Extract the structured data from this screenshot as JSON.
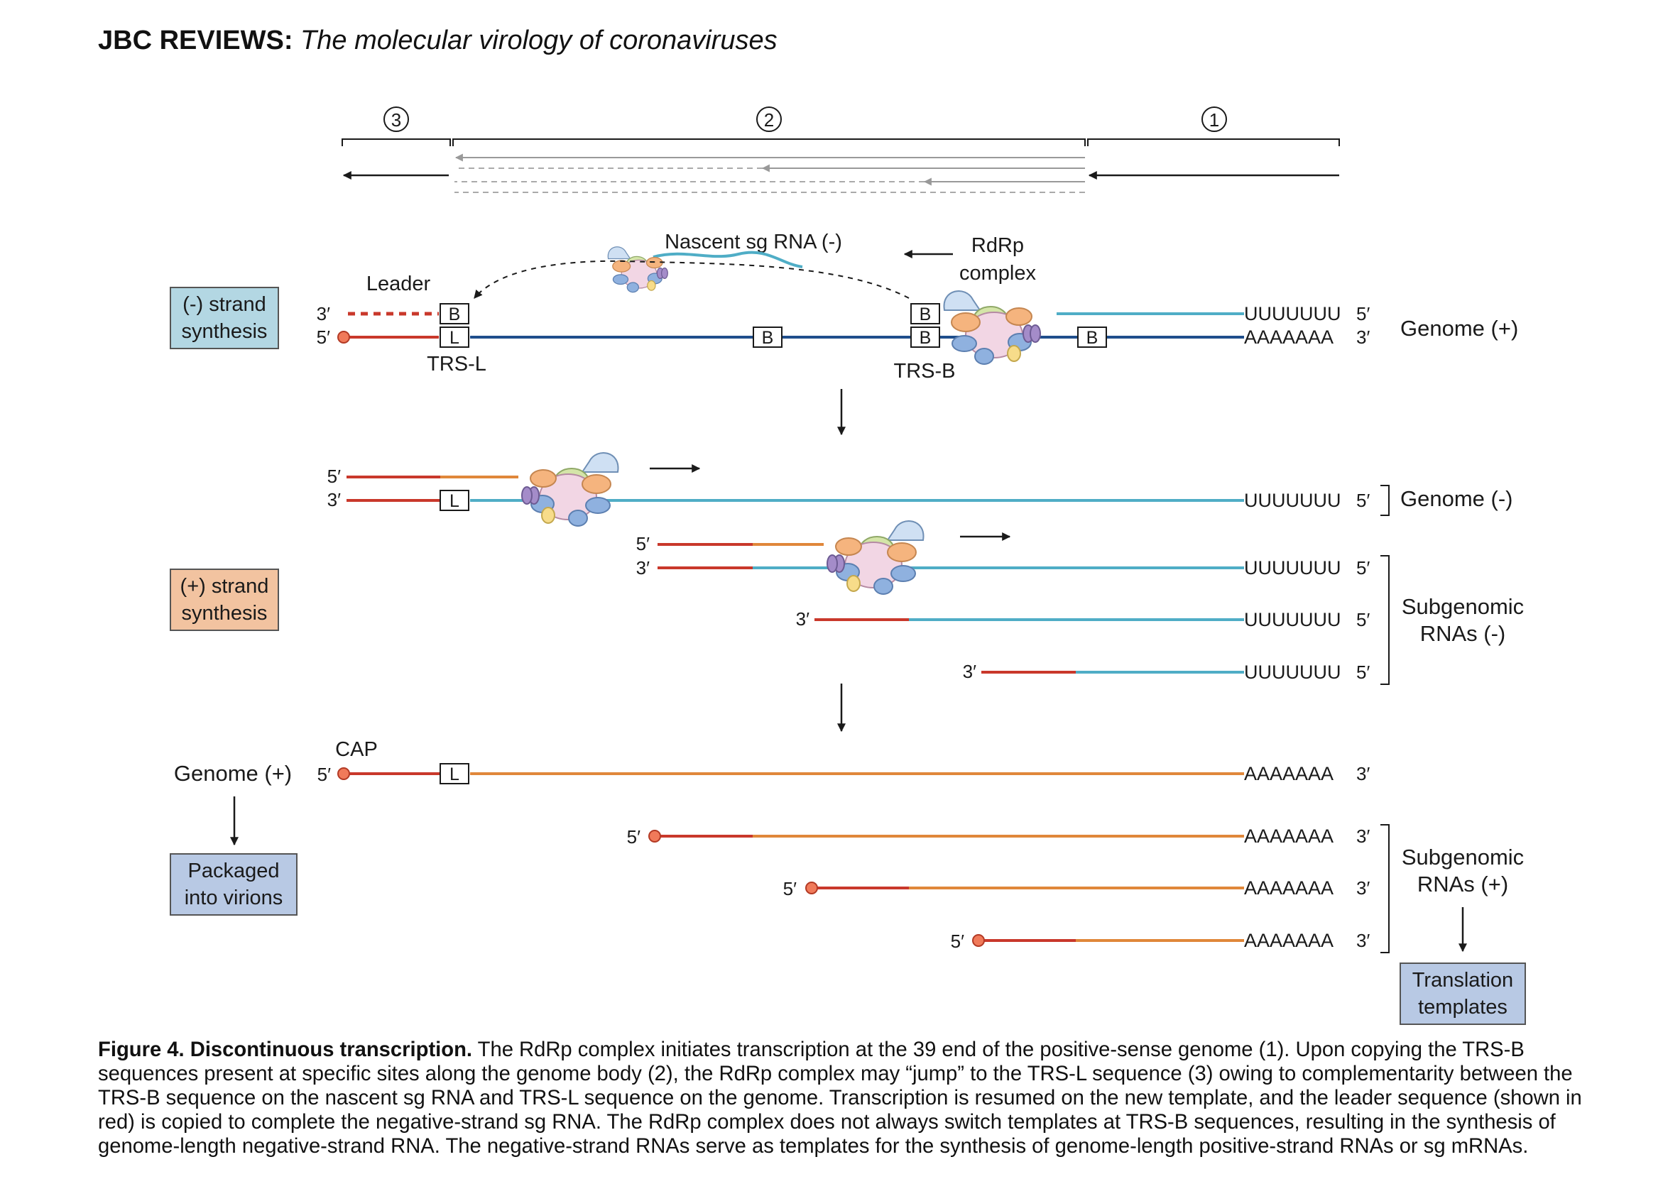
{
  "header": {
    "journal": "JBC REVIEWS:",
    "title": "The molecular virology of coronaviruses"
  },
  "steps": [
    "3",
    "2",
    "1"
  ],
  "labels": {
    "nascent": "Nascent sg RNA (-)",
    "rdrp_line1": "RdRp",
    "rdrp_line2": "complex",
    "leader": "Leader",
    "trs_l": "TRS-L",
    "trs_b": "TRS-B",
    "box_b": "B",
    "box_l": "L",
    "cap": "CAP",
    "prime5": "5′",
    "prime3": "3′",
    "poly_u": "UUUUUUU",
    "poly_a": "AAAAAAA",
    "genome_pos": "Genome (+)",
    "genome_neg": "Genome (-)",
    "subgenomic_line1": "Subgenomic",
    "sub_neg_line2": "RNAs (-)",
    "sub_pos_line2": "RNAs (+)"
  },
  "boxes": {
    "neg_line1": "(-) strand",
    "neg_line2": "synthesis",
    "pos_line1": "(+) strand",
    "pos_line2": "synthesis",
    "packaged_line1": "Packaged",
    "packaged_line2": "into virions",
    "translation_line1": "Translation",
    "translation_line2": "templates"
  },
  "colors": {
    "leader_red": "#c9382b",
    "genome_navy": "#1f4e8c",
    "neg_cyan": "#4fadc6",
    "pos_orange": "#e0873a",
    "box_blue": "#b3d7e3",
    "box_orange": "#f2c3a0",
    "box_lavender": "#b8c9e4"
  },
  "caption": {
    "label": "Figure 4.  Discontinuous transcription.",
    "text": " The RdRp complex initiates transcription at the 39 end of the positive-sense genome (1). Upon copying the TRS-B sequences present at specific sites along the genome body (2), the RdRp complex may “jump” to the TRS-L sequence (3) owing to complementarity between the TRS-B sequence on the nascent sg RNA and TRS-L sequence on the genome. Transcription is resumed on the new template, and the leader sequence (shown in red) is copied to complete the negative-strand sg RNA. The RdRp complex does not always switch templates at TRS-B sequences, resulting in the synthesis of genome-length negative-strand RNA. The negative-strand RNAs serve as templates for the synthesis of genome-length positive-strand RNAs or sg mRNAs."
  }
}
